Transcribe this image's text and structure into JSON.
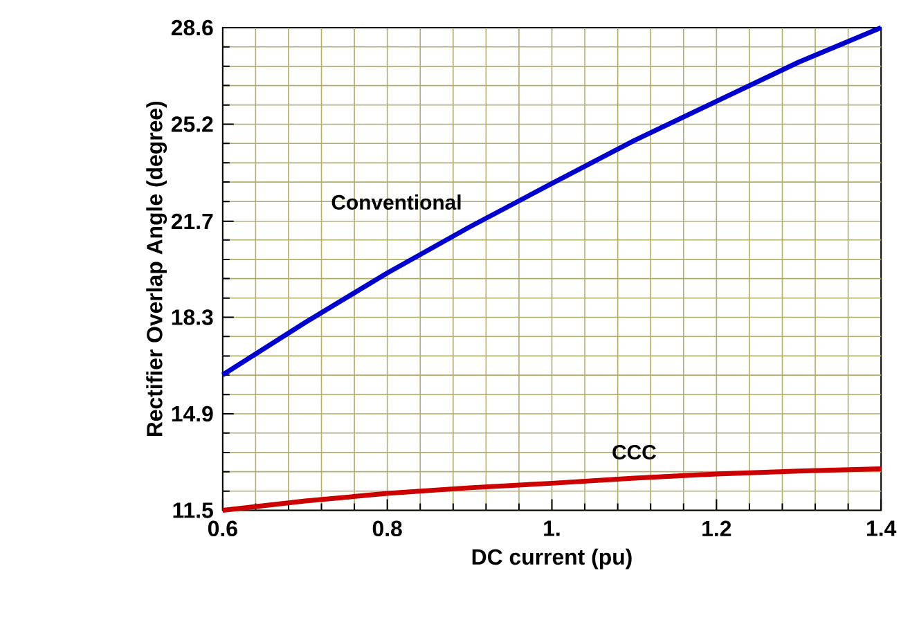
{
  "chart_data": {
    "type": "line",
    "xlabel": "DC current (pu)",
    "ylabel": "Rectifier Overlap Angle (degree)",
    "x": [
      0.6,
      0.7,
      0.8,
      0.9,
      1.0,
      1.1,
      1.2,
      1.3,
      1.4
    ],
    "series": [
      {
        "name": "Conventional",
        "color": "#0000cc",
        "values": [
          16.3,
          18.15,
          19.91,
          21.54,
          23.08,
          24.6,
          25.99,
          27.38,
          28.6
        ]
      },
      {
        "name": "CCC",
        "color": "#cc0000",
        "values": [
          11.5,
          11.83,
          12.1,
          12.3,
          12.46,
          12.64,
          12.79,
          12.89,
          12.97
        ]
      }
    ],
    "xlim": [
      0.6,
      1.4
    ],
    "ylim": [
      11.5,
      28.6
    ],
    "xticks": [
      0.6,
      {
        "value": 0.64,
        "label": null
      },
      {
        "value": 0.68,
        "label": null
      },
      {
        "value": 0.72,
        "label": null
      },
      {
        "value": 0.76,
        "label": null
      },
      0.8,
      {
        "value": 0.84,
        "label": null
      },
      {
        "value": 0.88,
        "label": null
      },
      {
        "value": 0.92,
        "label": null
      },
      {
        "value": 0.96,
        "label": null
      },
      {
        "value": 1.0,
        "label": "1."
      },
      {
        "value": 1.04,
        "label": null
      },
      {
        "value": 1.08,
        "label": null
      },
      {
        "value": 1.12,
        "label": null
      },
      {
        "value": 1.16,
        "label": null
      },
      1.2,
      {
        "value": 1.24,
        "label": null
      },
      {
        "value": 1.28,
        "label": null
      },
      {
        "value": 1.32,
        "label": null
      },
      {
        "value": 1.36,
        "label": null
      },
      1.4
    ],
    "yticks": [
      11.5,
      {
        "value": 12.18,
        "label": null
      },
      {
        "value": 12.87,
        "label": null
      },
      {
        "value": 13.55,
        "label": null
      },
      {
        "value": 14.24,
        "label": null
      },
      {
        "value": 14.92,
        "label": "14.9"
      },
      {
        "value": 15.6,
        "label": null
      },
      {
        "value": 16.29,
        "label": null
      },
      {
        "value": 16.97,
        "label": null
      },
      {
        "value": 17.66,
        "label": null
      },
      {
        "value": 18.34,
        "label": "18.3"
      },
      {
        "value": 19.02,
        "label": null
      },
      {
        "value": 19.71,
        "label": null
      },
      {
        "value": 20.39,
        "label": null
      },
      {
        "value": 21.08,
        "label": null
      },
      {
        "value": 21.74,
        "label": "21.7"
      },
      {
        "value": 22.44,
        "label": null
      },
      {
        "value": 23.13,
        "label": null
      },
      {
        "value": 23.81,
        "label": null
      },
      {
        "value": 24.5,
        "label": null
      },
      {
        "value": 25.18,
        "label": "25.2"
      },
      {
        "value": 25.86,
        "label": null
      },
      {
        "value": 26.55,
        "label": null
      },
      {
        "value": 27.23,
        "label": null
      },
      {
        "value": 27.92,
        "label": null
      },
      28.6
    ],
    "grid": true,
    "legend": false,
    "marker": "none",
    "line_style": "solid"
  }
}
